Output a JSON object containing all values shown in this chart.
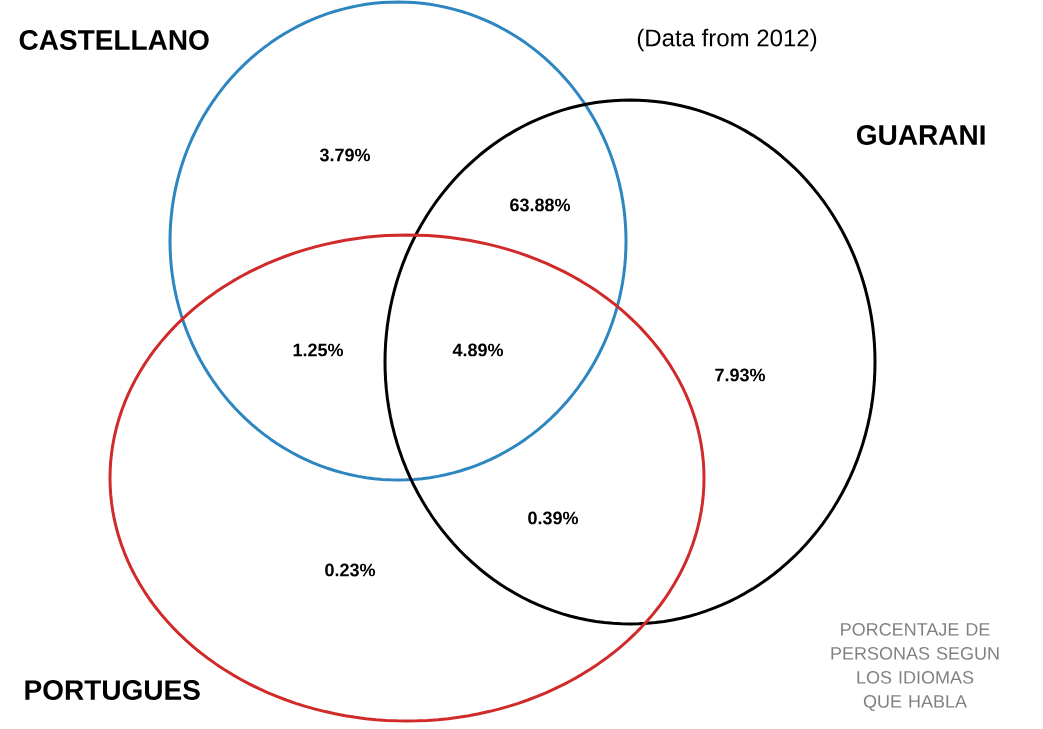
{
  "chart_data": {
    "type": "other",
    "categories": [
      null,
      null,
      null,
      null,
      null,
      null,
      null
    ],
    "values": [
      3.79,
      63.88,
      1.25,
      4.89,
      7.93,
      0.39,
      0.23
    ],
    "value_labels": [
      "3.79%",
      "63.88%",
      "1.25%",
      "4.89%",
      "7.93%",
      "0.39%",
      "0.23%"
    ],
    "annotations": [
      "CASTELLANO",
      "GUARANI",
      "PORTUGUES",
      "(Data from 2012)",
      "PORCENTAJE DE PERSONAS SEGUN LOS IDIOMAS QUE HABLA"
    ]
  }
}
